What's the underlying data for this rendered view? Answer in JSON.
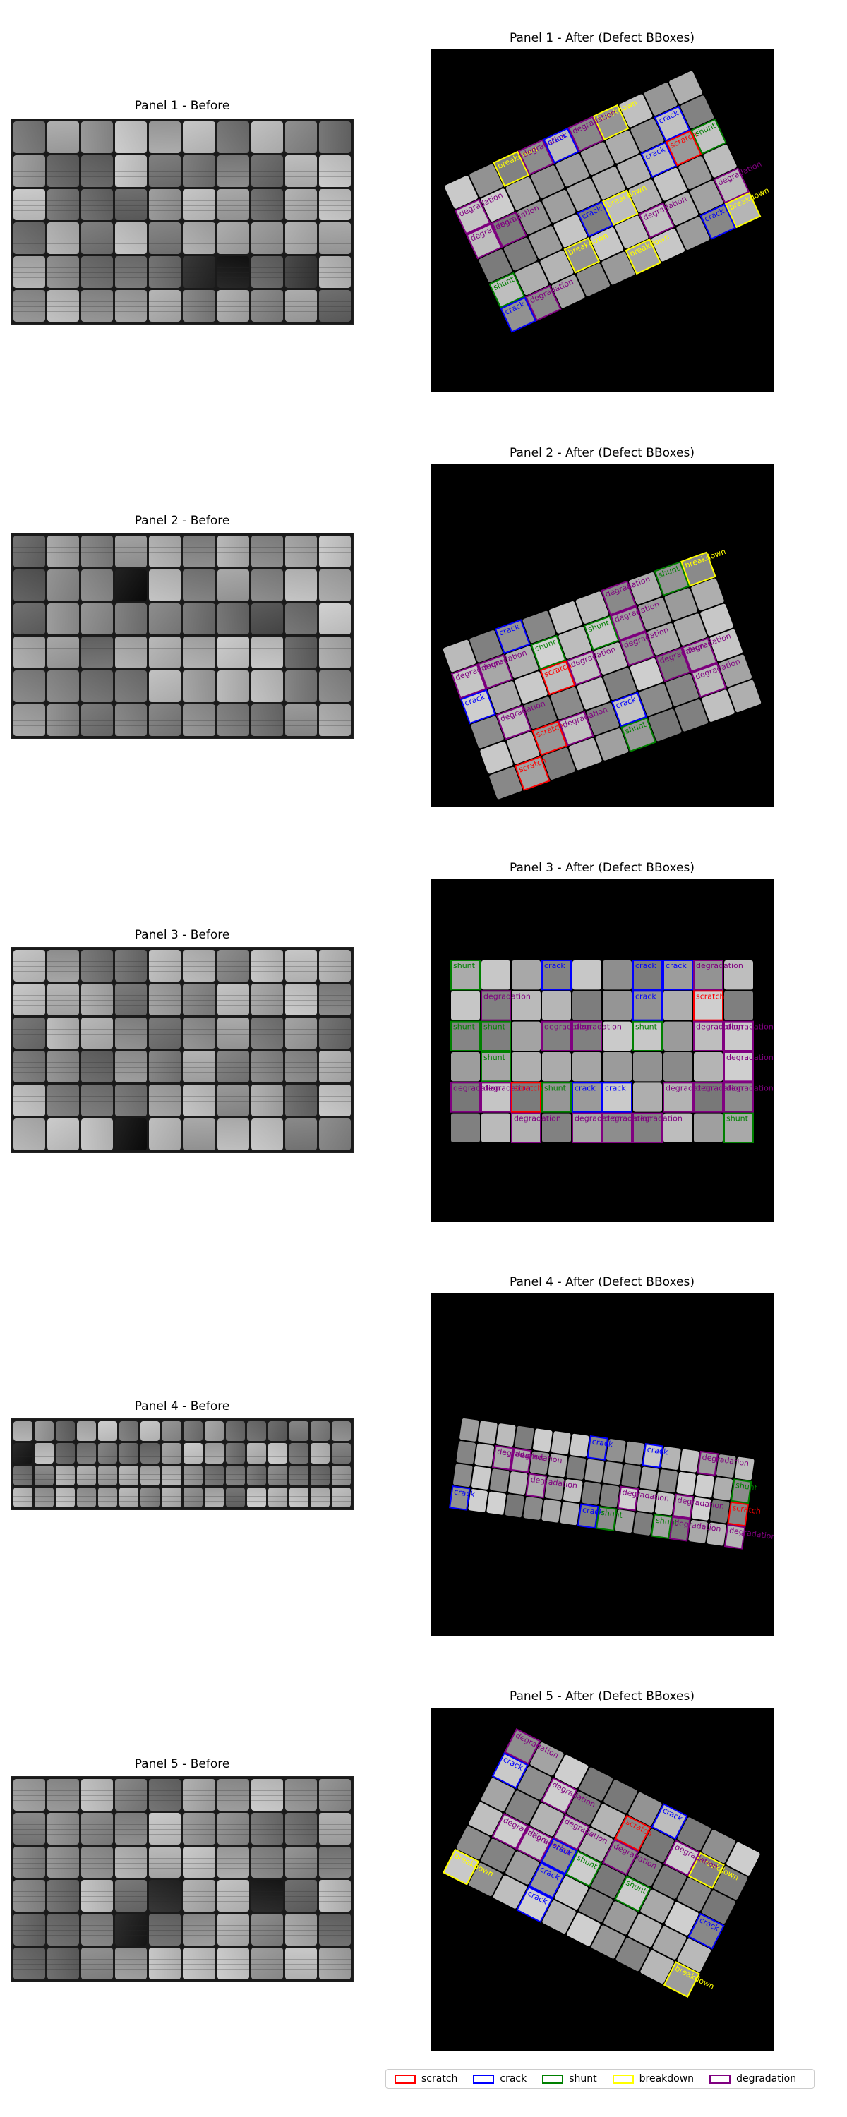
{
  "panels": [
    {
      "before_title": "Panel 1 - Before",
      "after_title": "Panel 1 - After (Defect BBoxes)",
      "defects": [
        {
          "type": "breakdown",
          "label": "breakdown"
        },
        {
          "type": "breakdown",
          "label": "breakdown"
        },
        {
          "type": "breakdown",
          "label": "breakdown"
        },
        {
          "type": "degradation",
          "label": "degradation"
        },
        {
          "type": "degradation",
          "label": "degradation"
        },
        {
          "type": "degradation",
          "label": "degradation"
        },
        {
          "type": "degradation",
          "label": "degradation"
        },
        {
          "type": "degradation",
          "label": "degradation"
        },
        {
          "type": "crack",
          "label": "crack"
        },
        {
          "type": "crack",
          "label": "crack"
        },
        {
          "type": "crack",
          "label": "crack"
        },
        {
          "type": "crack",
          "label": "crack"
        },
        {
          "type": "crack",
          "label": "crack"
        },
        {
          "type": "crack",
          "label": "crack"
        },
        {
          "type": "shunt",
          "label": "shunt"
        },
        {
          "type": "shunt",
          "label": "shunt"
        },
        {
          "type": "scratch",
          "label": "scratch"
        },
        {
          "type": "breakdown",
          "label": "breakdown"
        },
        {
          "type": "breakdown",
          "label": "breakdown"
        },
        {
          "type": "breakdown",
          "label": "breakdown"
        },
        {
          "type": "degradation",
          "label": "degradation"
        },
        {
          "type": "degradation",
          "label": "degradation"
        },
        {
          "type": "degradation",
          "label": "degradation"
        }
      ]
    },
    {
      "before_title": "Panel 2 - Before",
      "after_title": "Panel 2 - After (Defect BBoxes)",
      "defects": [
        {
          "type": "degradation",
          "label": "degradation"
        },
        {
          "type": "shunt",
          "label": "shunt"
        },
        {
          "type": "crack",
          "label": "crack"
        },
        {
          "type": "crack",
          "label": "crack"
        },
        {
          "type": "crack",
          "label": "crack"
        },
        {
          "type": "degradation",
          "label": "degradation"
        },
        {
          "type": "degradation",
          "label": "degradation"
        },
        {
          "type": "degradation",
          "label": "degradation"
        },
        {
          "type": "degradation",
          "label": "degradation"
        },
        {
          "type": "shunt",
          "label": "shunt"
        },
        {
          "type": "breakdown",
          "label": "breakdown"
        },
        {
          "type": "scratch",
          "label": "scratch"
        },
        {
          "type": "degradation",
          "label": "degradation"
        },
        {
          "type": "scratch",
          "label": "scratch"
        },
        {
          "type": "shunt",
          "label": "shunt"
        },
        {
          "type": "degradation",
          "label": "degradation"
        },
        {
          "type": "degradation",
          "label": "degradation"
        },
        {
          "type": "scratch",
          "label": "scratch"
        },
        {
          "type": "shunt",
          "label": "shunt"
        },
        {
          "type": "degradation",
          "label": "degradation"
        },
        {
          "type": "degradation",
          "label": "degradation"
        },
        {
          "type": "degradation",
          "label": "degradation"
        }
      ]
    },
    {
      "before_title": "Panel 3 - Before",
      "after_title": "Panel 3 - After (Defect BBoxes)",
      "defects": [
        {
          "type": "degradation",
          "label": "degradation"
        },
        {
          "type": "degradation",
          "label": "degradation"
        },
        {
          "type": "degradation",
          "label": "degradation"
        },
        {
          "type": "shunt",
          "label": "shunt"
        },
        {
          "type": "shunt",
          "label": "shunt"
        },
        {
          "type": "scratch",
          "label": "scratch"
        },
        {
          "type": "shunt",
          "label": "shunt"
        },
        {
          "type": "degradation",
          "label": "degradation"
        },
        {
          "type": "degradation",
          "label": "degradation"
        },
        {
          "type": "degradation",
          "label": "degradation"
        },
        {
          "type": "degradation",
          "label": "degradation"
        },
        {
          "type": "shunt",
          "label": "shunt"
        },
        {
          "type": "degradation",
          "label": "degradation"
        },
        {
          "type": "degradation",
          "label": "degradation"
        },
        {
          "type": "degradation",
          "label": "degradation"
        },
        {
          "type": "degradation",
          "label": "degradation"
        },
        {
          "type": "scratch",
          "label": "scratch"
        },
        {
          "type": "degradation",
          "label": "degradation"
        },
        {
          "type": "shunt",
          "label": "shunt"
        },
        {
          "type": "degradation",
          "label": "degradation"
        },
        {
          "type": "shunt",
          "label": "shunt"
        },
        {
          "type": "degradation",
          "label": "degradation"
        },
        {
          "type": "crack",
          "label": "crack"
        },
        {
          "type": "crack",
          "label": "crack"
        },
        {
          "type": "crack",
          "label": "crack"
        },
        {
          "type": "crack",
          "label": "crack"
        },
        {
          "type": "crack",
          "label": "crack"
        },
        {
          "type": "degradation",
          "label": "degradation"
        },
        {
          "type": "crack",
          "label": "crack"
        },
        {
          "type": "degradation",
          "label": "degradation"
        },
        {
          "type": "shunt",
          "label": "shunt"
        }
      ]
    },
    {
      "before_title": "Panel 4 - Before",
      "after_title": "Panel 4 - After (Defect BBoxes)",
      "defects": [
        {
          "type": "shunt",
          "label": "shunt"
        },
        {
          "type": "degradation",
          "label": "degradation"
        },
        {
          "type": "crack",
          "label": "crack"
        },
        {
          "type": "degradation",
          "label": "degradation"
        },
        {
          "type": "degradation",
          "label": "degradation"
        },
        {
          "type": "degradation",
          "label": "degradation"
        },
        {
          "type": "crack",
          "label": "crack"
        },
        {
          "type": "degradation",
          "label": "degradation"
        },
        {
          "type": "shunt",
          "label": "shunt"
        },
        {
          "type": "scratch",
          "label": "scratch"
        },
        {
          "type": "degradation",
          "label": "degradation"
        },
        {
          "type": "crack",
          "label": "crack"
        },
        {
          "type": "degradation",
          "label": "degradation"
        },
        {
          "type": "shunt",
          "label": "shunt"
        },
        {
          "type": "degradation",
          "label": "degradation"
        },
        {
          "type": "crack",
          "label": "crack"
        }
      ]
    },
    {
      "before_title": "Panel 5 - Before",
      "after_title": "Panel 5 - After (Defect BBoxes)",
      "defects": [
        {
          "type": "crack",
          "label": "crack"
        },
        {
          "type": "degradation",
          "label": "degradation"
        },
        {
          "type": "shunt",
          "label": "shunt"
        },
        {
          "type": "breakdown",
          "label": "breakdown"
        },
        {
          "type": "degradation",
          "label": "degradation"
        },
        {
          "type": "scratch",
          "label": "scratch"
        },
        {
          "type": "degradation",
          "label": "degradation"
        },
        {
          "type": "crack",
          "label": "crack"
        },
        {
          "type": "crack",
          "label": "crack"
        },
        {
          "type": "degradation",
          "label": "degradation"
        },
        {
          "type": "breakdown",
          "label": "breakdown"
        },
        {
          "type": "degradation",
          "label": "degradation"
        },
        {
          "type": "crack",
          "label": "crack"
        },
        {
          "type": "degradation",
          "label": "degradation"
        },
        {
          "type": "shunt",
          "label": "shunt"
        },
        {
          "type": "crack",
          "label": "crack"
        },
        {
          "type": "degradation",
          "label": "degradation"
        },
        {
          "type": "breakdown",
          "label": "breakdown"
        },
        {
          "type": "crack",
          "label": "crack"
        }
      ]
    }
  ],
  "legend": [
    {
      "label": "scratch",
      "color": "#ff0000"
    },
    {
      "label": "crack",
      "color": "#0000ff"
    },
    {
      "label": "shunt",
      "color": "#008000"
    },
    {
      "label": "breakdown",
      "color": "#ffff00"
    },
    {
      "label": "degradation",
      "color": "#800080"
    }
  ],
  "colors": {
    "scratch": "#ff0000",
    "crack": "#0000ff",
    "shunt": "#008000",
    "breakdown": "#ffff00",
    "degradation": "#800080"
  }
}
